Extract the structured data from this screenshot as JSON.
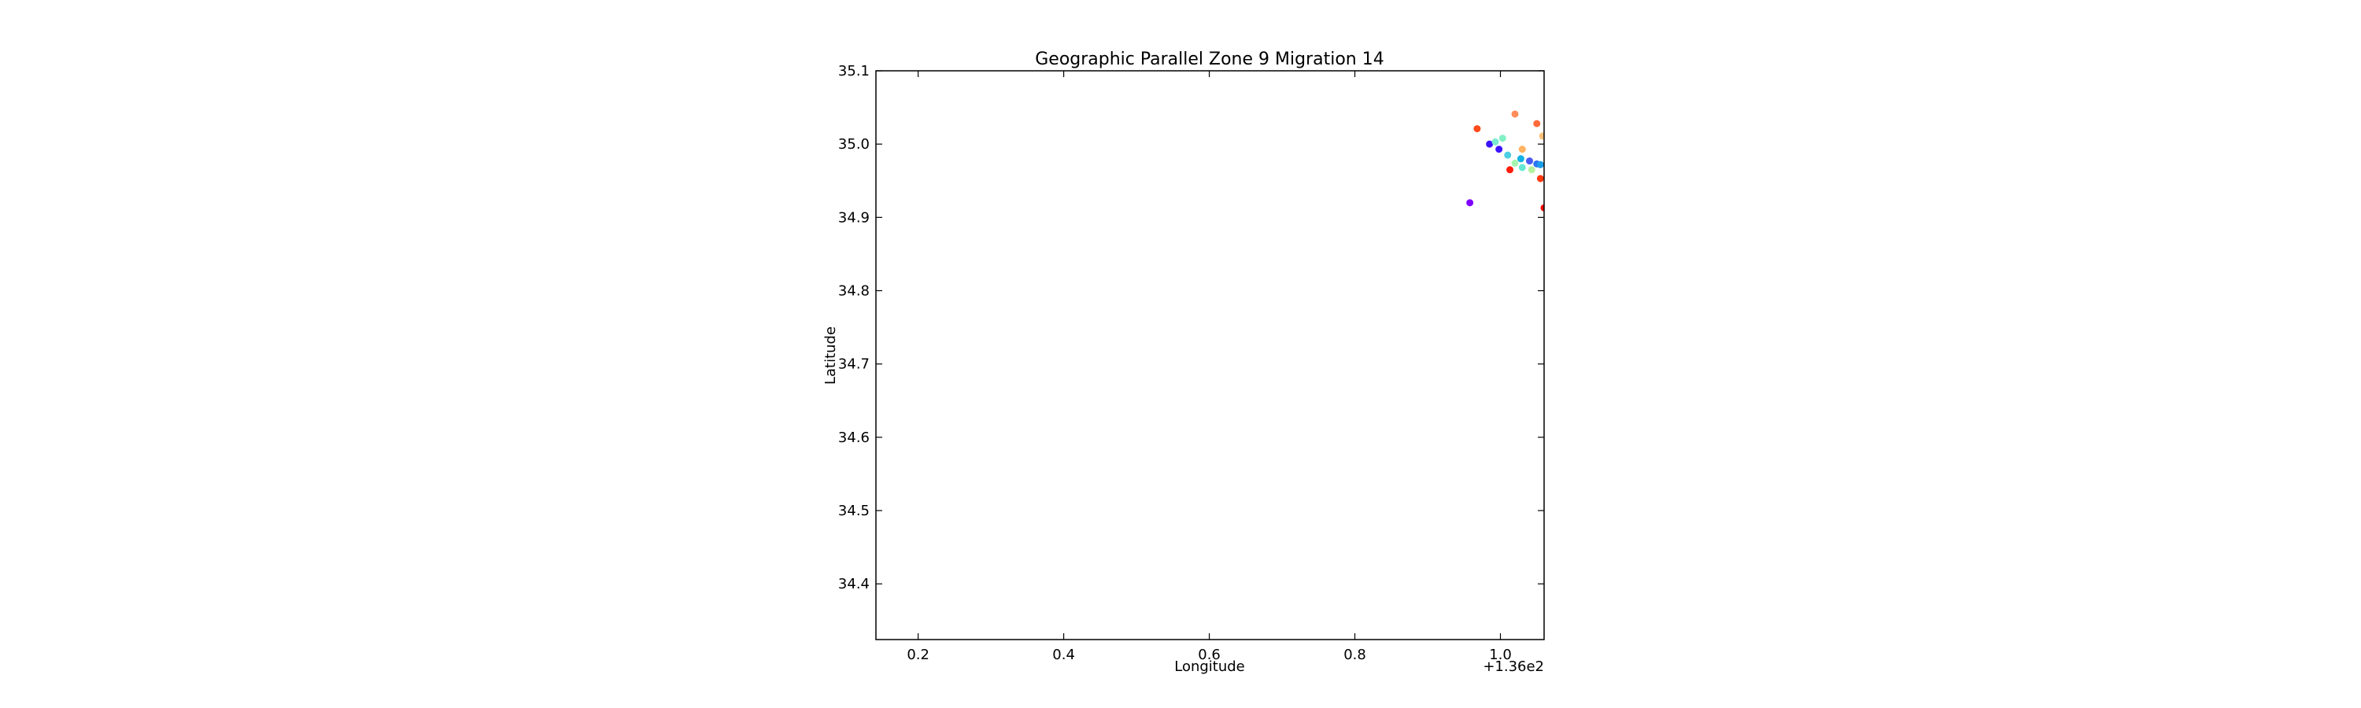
{
  "chart_data": {
    "type": "scatter",
    "title": "Geographic Parallel Zone 9 Migration 14",
    "xlabel": "Longitude",
    "ylabel": "Latitude",
    "x_offset_label": "+1.36e2",
    "xlim": [
      136.142,
      137.06
    ],
    "ylim": [
      34.324,
      35.1
    ],
    "xticks": [
      {
        "value": 136.2,
        "label": "0.2"
      },
      {
        "value": 136.4,
        "label": "0.4"
      },
      {
        "value": 136.6,
        "label": "0.6"
      },
      {
        "value": 136.8,
        "label": "0.8"
      },
      {
        "value": 137.0,
        "label": "1.0"
      }
    ],
    "yticks": [
      {
        "value": 34.4,
        "label": "34.4"
      },
      {
        "value": 34.5,
        "label": "34.5"
      },
      {
        "value": 34.6,
        "label": "34.6"
      },
      {
        "value": 34.7,
        "label": "34.7"
      },
      {
        "value": 34.8,
        "label": "34.8"
      },
      {
        "value": 34.9,
        "label": "34.9"
      },
      {
        "value": 35.0,
        "label": "35.0"
      },
      {
        "value": 35.1,
        "label": "35.1"
      }
    ],
    "grid": false,
    "points": [
      {
        "x": 136.958,
        "y": 34.92,
        "color": "#7f00ff"
      },
      {
        "x": 136.985,
        "y": 35.0,
        "color": "#3b14ff"
      },
      {
        "x": 136.998,
        "y": 34.993,
        "color": "#3b14ff"
      },
      {
        "x": 137.04,
        "y": 34.977,
        "color": "#4a59f5"
      },
      {
        "x": 137.05,
        "y": 34.973,
        "color": "#2f74f3"
      },
      {
        "x": 137.055,
        "y": 34.972,
        "color": "#1a9ee9"
      },
      {
        "x": 137.028,
        "y": 34.98,
        "color": "#14b1e4"
      },
      {
        "x": 137.01,
        "y": 34.985,
        "color": "#4ccfe2"
      },
      {
        "x": 136.993,
        "y": 35.003,
        "color": "#7aebd1"
      },
      {
        "x": 137.003,
        "y": 35.008,
        "color": "#82f0c4"
      },
      {
        "x": 137.03,
        "y": 34.968,
        "color": "#66e8d2"
      },
      {
        "x": 137.02,
        "y": 34.974,
        "color": "#a6f5b0"
      },
      {
        "x": 137.043,
        "y": 34.965,
        "color": "#b5f29f"
      },
      {
        "x": 137.058,
        "y": 35.011,
        "color": "#ffc07a"
      },
      {
        "x": 137.03,
        "y": 34.993,
        "color": "#ffb25f"
      },
      {
        "x": 137.02,
        "y": 35.041,
        "color": "#ff8c5a"
      },
      {
        "x": 137.05,
        "y": 35.028,
        "color": "#ff6a3c"
      },
      {
        "x": 136.968,
        "y": 35.021,
        "color": "#ff4a1c"
      },
      {
        "x": 137.055,
        "y": 34.953,
        "color": "#ff3a10"
      },
      {
        "x": 137.013,
        "y": 34.965,
        "color": "#ff1d0a"
      },
      {
        "x": 137.06,
        "y": 34.913,
        "color": "#ff0000"
      }
    ]
  }
}
